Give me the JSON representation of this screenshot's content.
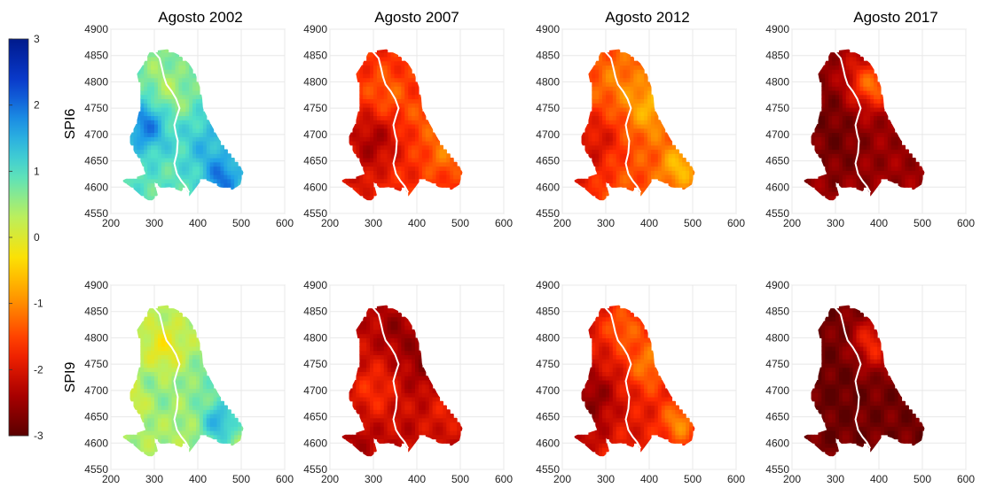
{
  "columns": [
    {
      "title": "Agosto 2002"
    },
    {
      "title": "Agosto 2007"
    },
    {
      "title": "Agosto 2012"
    },
    {
      "title": "Agosto 2017"
    }
  ],
  "rows": [
    {
      "label": "SPI6"
    },
    {
      "label": "SPI9"
    }
  ],
  "colorbar": {
    "min": -3,
    "max": 3,
    "ticks": [
      "3",
      "2",
      "1",
      "0",
      "-1",
      "-2",
      "-3"
    ],
    "colormap": [
      "#5a0000",
      "#b00000",
      "#ff2a00",
      "#ff8c00",
      "#ffe000",
      "#b8f060",
      "#4fe0c8",
      "#1fa0e8",
      "#0a3cd0",
      "#001a8c"
    ]
  },
  "chart_data": {
    "type": "heatmap",
    "xlim": [
      200,
      600
    ],
    "ylim": [
      4550,
      4900
    ],
    "x_ticks": [
      "200",
      "300",
      "400",
      "500",
      "600"
    ],
    "y_ticks": [
      "4900",
      "4850",
      "4800",
      "4750",
      "4700",
      "4650",
      "4600",
      "4550"
    ],
    "panels": [
      {
        "row": "SPI6",
        "column": "Agosto 2002",
        "mean_value": 0.9
      },
      {
        "row": "SPI6",
        "column": "Agosto 2007",
        "mean_value": -1.7
      },
      {
        "row": "SPI6",
        "column": "Agosto 2012",
        "mean_value": -1.4
      },
      {
        "row": "SPI6",
        "column": "Agosto 2017",
        "mean_value": -2.5
      },
      {
        "row": "SPI9",
        "column": "Agosto 2002",
        "mean_value": 0.4
      },
      {
        "row": "SPI9",
        "column": "Agosto 2007",
        "mean_value": -2.2
      },
      {
        "row": "SPI9",
        "column": "Agosto 2012",
        "mean_value": -1.9
      },
      {
        "row": "SPI9",
        "column": "Agosto 2017",
        "mean_value": -2.8
      }
    ]
  }
}
